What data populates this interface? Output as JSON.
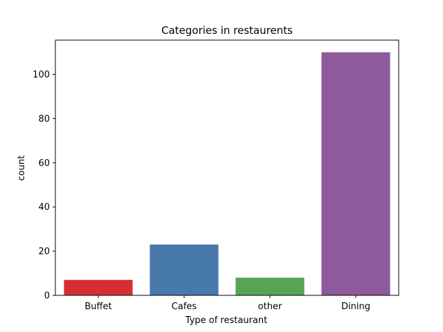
{
  "chart_data": {
    "type": "bar",
    "title": "Categories in restaurents",
    "xlabel": "Type of restaurant",
    "ylabel": "count",
    "categories": [
      "Buffet",
      "Cafes",
      "other",
      "Dining"
    ],
    "values": [
      7,
      23,
      8,
      110
    ],
    "colors": [
      "#d62f33",
      "#4779ab",
      "#58a455",
      "#8f5a9b"
    ],
    "ylim": [
      0,
      115.5
    ],
    "yticks": [
      0,
      20,
      40,
      60,
      80,
      100
    ],
    "grid": false
  }
}
